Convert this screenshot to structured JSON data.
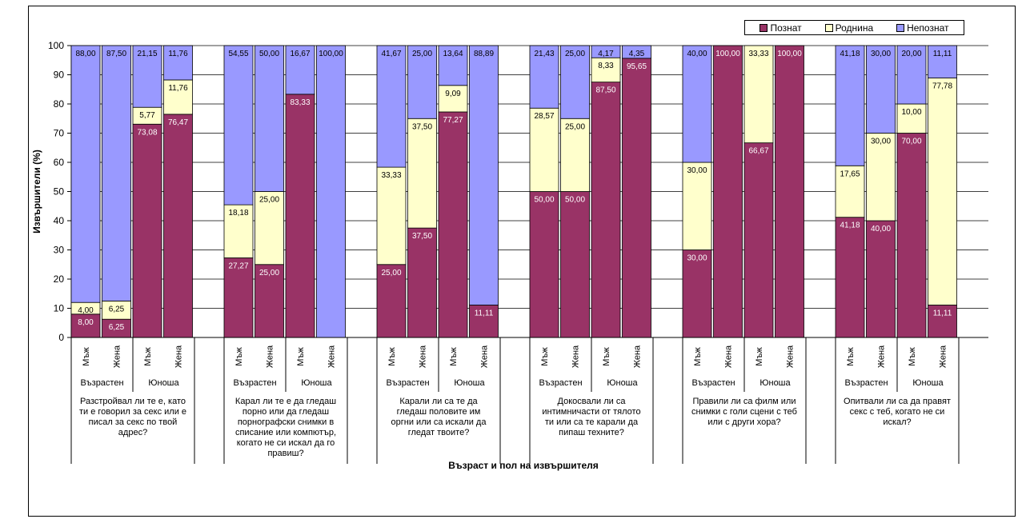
{
  "chart_data": {
    "type": "bar",
    "stacked": true,
    "xlabel": "Възраст и пол на извършителя",
    "ylabel": "Извършители (%)",
    "ylim": [
      0,
      100
    ],
    "yticks": [
      0,
      10,
      20,
      30,
      40,
      50,
      60,
      70,
      80,
      90,
      100
    ],
    "grid": true,
    "legend_position": "top-right",
    "colors": {
      "Познат": "#993366",
      "Роднина": "#FFFFCC",
      "Непознат": "#9999FF"
    },
    "legend": [
      "Познат",
      "Роднина",
      "Непознат"
    ],
    "series_names": [
      "Познат",
      "Роднина",
      "Непознат"
    ],
    "groups": [
      {
        "question": [
          "Разстройвал ли те е, като",
          "ти е говорил за секс или е",
          "писал за секс по твой",
          "адрес?"
        ],
        "ages": [
          "Възрастен",
          "Юноша"
        ],
        "bars": [
          {
            "gender": "Мъж",
            "values": [
              8.0,
              4.0,
              88.0
            ],
            "labels": [
              "8,00",
              "4,00",
              "88,00"
            ]
          },
          {
            "gender": "Жена",
            "values": [
              6.25,
              6.25,
              87.5
            ],
            "labels": [
              "6,25",
              "6,25",
              "87,50"
            ]
          },
          {
            "gender": "Мъж",
            "values": [
              73.08,
              5.77,
              21.15
            ],
            "labels": [
              "73,08",
              "5,77",
              "21,15"
            ]
          },
          {
            "gender": "Жена",
            "values": [
              76.47,
              11.76,
              11.76
            ],
            "labels": [
              "76,47",
              "11,76",
              "11,76"
            ]
          }
        ]
      },
      {
        "question": [
          "Карал ли те е да гледаш",
          "порно или да гледаш",
          "порнографски снимки в",
          "списание или компютър,",
          "когато не си искал да го",
          "правиш?"
        ],
        "ages": [
          "Възрастен",
          "Юноша"
        ],
        "bars": [
          {
            "gender": "Мъж",
            "values": [
              27.27,
              18.18,
              54.55
            ],
            "labels": [
              "27,27",
              "18,18",
              "54,55"
            ]
          },
          {
            "gender": "Жена",
            "values": [
              25.0,
              25.0,
              50.0
            ],
            "labels": [
              "25,00",
              "25,00",
              "50,00"
            ]
          },
          {
            "gender": "Мъж",
            "values": [
              83.33,
              0,
              16.67
            ],
            "labels": [
              "83,33",
              "",
              "16,67"
            ]
          },
          {
            "gender": "Жена",
            "values": [
              0,
              0,
              100.0
            ],
            "labels": [
              "",
              "",
              "100,00"
            ]
          }
        ]
      },
      {
        "question": [
          "Карали ли са те да",
          "гледаш половите им",
          "оргни или са искали да",
          "гледат твоите?"
        ],
        "ages": [
          "Възрастен",
          "Юноша"
        ],
        "bars": [
          {
            "gender": "Мъж",
            "values": [
              25.0,
              33.33,
              41.67
            ],
            "labels": [
              "25,00",
              "33,33",
              "41,67"
            ]
          },
          {
            "gender": "Жена",
            "values": [
              37.5,
              37.5,
              25.0
            ],
            "labels": [
              "37,50",
              "37,50",
              "25,00"
            ]
          },
          {
            "gender": "Мъж",
            "values": [
              77.27,
              9.09,
              13.64
            ],
            "labels": [
              "77,27",
              "9,09",
              "13,64"
            ]
          },
          {
            "gender": "Жена",
            "values": [
              11.11,
              0,
              88.89
            ],
            "labels": [
              "11,11",
              "",
              "88,89"
            ]
          }
        ]
      },
      {
        "question": [
          "Докосвали ли са",
          "интимничасти от тялото",
          "ти или са те карали да",
          "пипаш техните?"
        ],
        "ages": [
          "Възрастен",
          "Юноша"
        ],
        "bars": [
          {
            "gender": "Мъж",
            "values": [
              50.0,
              28.57,
              21.43
            ],
            "labels": [
              "50,00",
              "28,57",
              "21,43"
            ]
          },
          {
            "gender": "Жена",
            "values": [
              50.0,
              25.0,
              25.0
            ],
            "labels": [
              "50,00",
              "25,00",
              "25,00"
            ]
          },
          {
            "gender": "Мъж",
            "values": [
              87.5,
              8.33,
              4.17
            ],
            "labels": [
              "87,50",
              "8,33",
              "4,17"
            ]
          },
          {
            "gender": "Жена",
            "values": [
              95.65,
              0,
              4.35
            ],
            "labels": [
              "95,65",
              "",
              "4,35"
            ]
          }
        ]
      },
      {
        "question": [
          "Правили ли са филм или",
          "снимки с голи сцени с теб",
          "или с други хора?"
        ],
        "ages": [
          "Възрастен",
          "Юноша"
        ],
        "bars": [
          {
            "gender": "Мъж",
            "values": [
              30.0,
              30.0,
              40.0
            ],
            "labels": [
              "30,00",
              "30,00",
              "40,00"
            ]
          },
          {
            "gender": "Жена",
            "values": [
              100.0,
              0,
              0
            ],
            "labels": [
              "100,00",
              "",
              ""
            ]
          },
          {
            "gender": "Мъж",
            "values": [
              66.67,
              33.33,
              0
            ],
            "labels": [
              "",
              "33,33",
              ""
            ],
            "inner_label": "66,67"
          },
          {
            "gender": "Жена",
            "values": [
              100.0,
              0,
              0
            ],
            "labels": [
              "100,00",
              "",
              ""
            ]
          }
        ]
      },
      {
        "question": [
          "Опитвали ли са да правят",
          "секс с теб, когато не си",
          "искал?"
        ],
        "ages": [
          "Възрастен",
          "Юноша"
        ],
        "bars": [
          {
            "gender": "Мъж",
            "values": [
              41.18,
              17.65,
              41.18
            ],
            "labels": [
              "41,18",
              "17,65",
              "41,18"
            ]
          },
          {
            "gender": "Жена",
            "values": [
              40.0,
              30.0,
              30.0
            ],
            "labels": [
              "40,00",
              "30,00",
              "30,00"
            ]
          },
          {
            "gender": "Мъж",
            "values": [
              70.0,
              10.0,
              20.0
            ],
            "labels": [
              "70,00",
              "10,00",
              "20,00"
            ]
          },
          {
            "gender": "Жена",
            "values": [
              11.11,
              77.78,
              11.11
            ],
            "labels": [
              "11,11",
              "77,78",
              "11,11"
            ]
          }
        ]
      }
    ]
  }
}
